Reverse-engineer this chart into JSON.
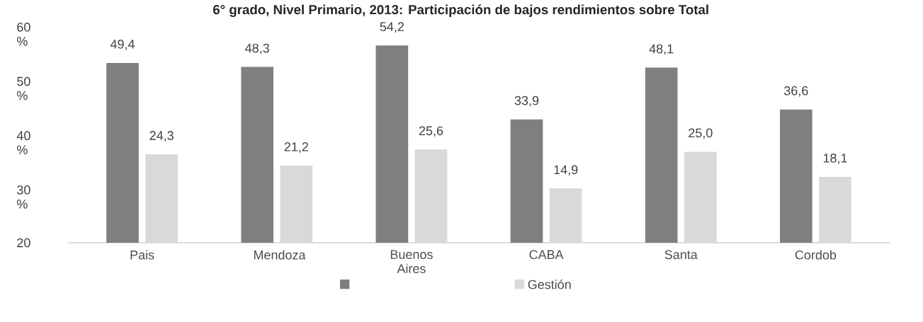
{
  "chart_data": {
    "type": "bar",
    "title": "6° grado, Nivel Primario, 2013: Participación de bajos rendimientos sobre Total",
    "categories": [
      "Pais",
      "Mendoza",
      "Buenos Aires",
      "CABA",
      "Santa",
      "Cordob"
    ],
    "series": [
      {
        "axis": "y2",
        "color": "#7f7f7f",
        "values": [
          49.4,
          48.3,
          54.2,
          33.9,
          48.1,
          36.6
        ],
        "value_labels": [
          "49,4",
          "48,3",
          "54,2",
          "33,9",
          "48,1",
          "36,6"
        ]
      },
      {
        "axis": "y2",
        "name": "Gestión",
        "color": "#d9d9d9",
        "values": [
          24.3,
          21.2,
          25.6,
          14.9,
          25.0,
          18.1
        ],
        "value_labels": [
          "24,3",
          "21,2",
          "25,6",
          "14,9",
          "25,0",
          "18,1"
        ]
      }
    ],
    "ylim": [
      20,
      60
    ],
    "yticks": [
      20,
      {
        "value": 30,
        "label": "30 %"
      },
      {
        "value": 40,
        "label": "40 %"
      },
      {
        "value": 50,
        "label": "50 %"
      },
      {
        "value": 60,
        "label": "60 %"
      }
    ],
    "grid": false,
    "legend": "bottom"
  }
}
